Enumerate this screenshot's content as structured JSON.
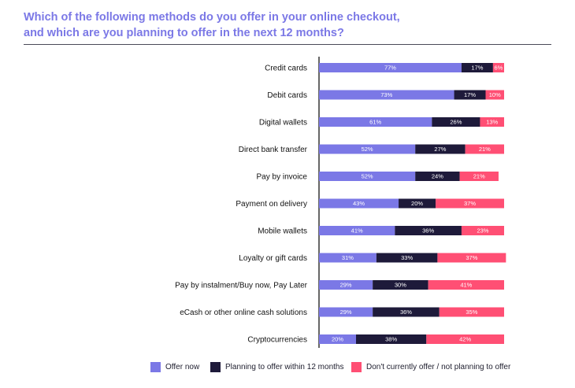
{
  "title_line1": "Which of the following methods do you offer in your online checkout,",
  "title_line2": "and which are you planning to offer in the next 12 months?",
  "colors": {
    "offer_now": "#7b78e6",
    "planning": "#1e1a3a",
    "dont_offer": "#ff4f74",
    "axis": "#000000",
    "label_text": "#111111"
  },
  "chart_data": {
    "type": "bar",
    "orientation": "horizontal",
    "stacked": true,
    "title": "Which of the following methods do you offer in your online checkout, and which are you planning to offer in the next 12 months?",
    "xlim": [
      0,
      100
    ],
    "unit": "%",
    "categories": [
      "Credit cards",
      "Debit cards",
      "Digital wallets",
      "Direct bank transfer",
      "Pay by invoice",
      "Payment on delivery",
      "Mobile wallets",
      "Loyalty or gift cards",
      "Pay by instalment/Buy now, Pay Later",
      "eCash or other online cash solutions",
      "Cryptocurrencies"
    ],
    "series": [
      {
        "name": "Offer now",
        "color": "#7b78e6",
        "values": [
          77,
          73,
          61,
          52,
          52,
          43,
          41,
          31,
          29,
          29,
          20
        ]
      },
      {
        "name": "Planning to offer within 12 months",
        "color": "#1e1a3a",
        "values": [
          17,
          17,
          26,
          27,
          24,
          20,
          36,
          33,
          30,
          36,
          38
        ]
      },
      {
        "name": "Don't currently offer / not planning to offer",
        "color": "#ff4f74",
        "values": [
          6,
          10,
          13,
          21,
          21,
          37,
          23,
          37,
          41,
          35,
          42
        ]
      }
    ],
    "legend_position": "bottom"
  }
}
